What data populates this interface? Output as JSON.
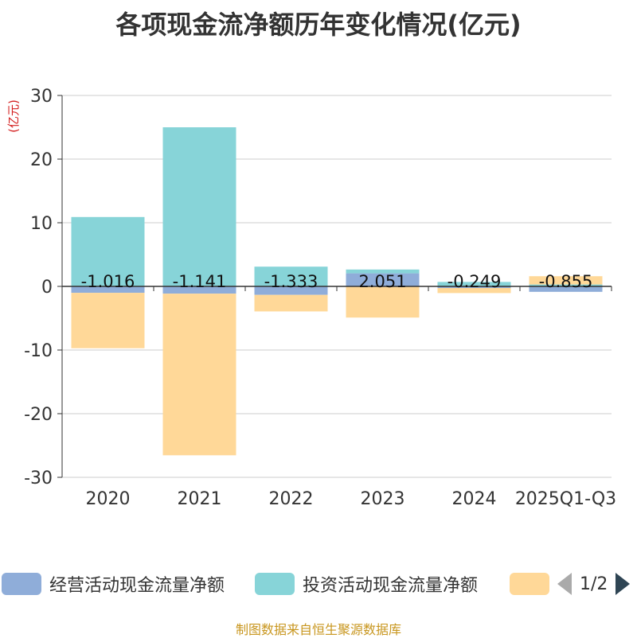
{
  "chart_data": {
    "type": "bar",
    "stacked": true,
    "title": "各项现金流净额历年变化情况(亿元)",
    "ylabel": "(亿元)",
    "ylim": [
      -30,
      30
    ],
    "yticks": [
      30,
      20,
      10,
      0,
      -10,
      -20,
      -30
    ],
    "grid": true,
    "legend_position": "bottom",
    "categories": [
      "2020",
      "2021",
      "2022",
      "2023",
      "2024",
      "2025Q1-Q3"
    ],
    "series": [
      {
        "name": "经营活动现金流量净额",
        "color": "#8fadd9",
        "values": [
          -1.016,
          -1.141,
          -1.333,
          2.051,
          -0.249,
          -0.855
        ],
        "labels": [
          "-1.016",
          "-1.141",
          "-1.333",
          "2.051",
          "-0.249",
          "-0.855"
        ]
      },
      {
        "name": "投资活动现金流量净额",
        "color": "#87d4d8",
        "values": [
          10.9,
          25.0,
          3.1,
          0.6,
          0.7,
          0.3
        ]
      },
      {
        "name": "",
        "color": "#ffd898",
        "values": [
          -8.7,
          -25.4,
          -2.6,
          -4.9,
          -0.8,
          1.3
        ]
      }
    ]
  },
  "legend": {
    "page": "1/2"
  },
  "source": "制图数据来自恒生聚源数据库"
}
